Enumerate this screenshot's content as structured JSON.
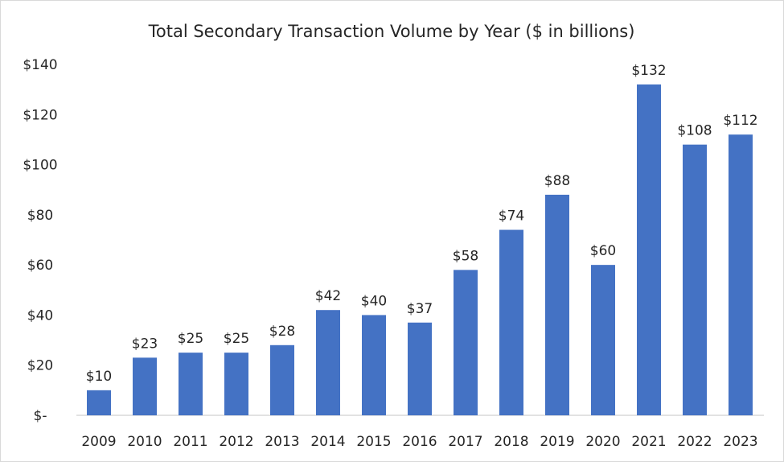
{
  "chart_data": {
    "type": "bar",
    "title": "Total Secondary Transaction Volume by Year ($ in billions)",
    "xlabel": "",
    "ylabel": "",
    "categories": [
      "2009",
      "2010",
      "2011",
      "2012",
      "2013",
      "2014",
      "2015",
      "2016",
      "2017",
      "2018",
      "2019",
      "2020",
      "2021",
      "2022",
      "2023"
    ],
    "values": [
      10,
      23,
      25,
      25,
      28,
      42,
      40,
      37,
      58,
      74,
      88,
      60,
      132,
      108,
      112
    ],
    "data_labels": [
      "$10",
      "$23",
      "$25",
      "$25",
      "$28",
      "$42",
      "$40",
      "$37",
      "$58",
      "$74",
      "$88",
      "$60",
      "$132",
      "$108",
      "$112"
    ],
    "ylim": [
      0,
      140
    ],
    "y_ticks": [
      0,
      20,
      40,
      60,
      80,
      100,
      120,
      140
    ],
    "y_tick_labels": [
      "$-",
      "$20",
      "$40",
      "$60",
      "$80",
      "$100",
      "$120",
      "$140"
    ],
    "grid": false,
    "legend": "none",
    "bar_color": "#4472c4"
  }
}
